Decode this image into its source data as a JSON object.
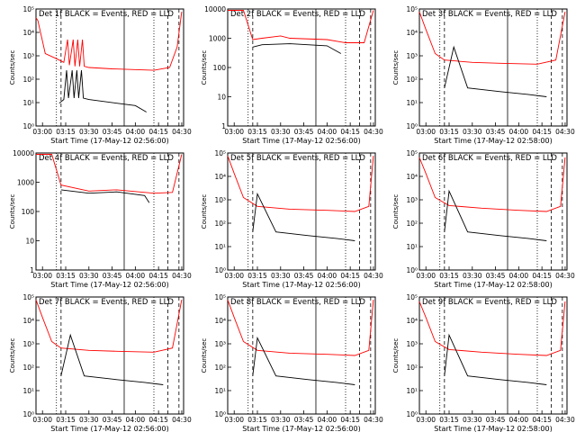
{
  "chart_data": [
    {
      "type": "line",
      "title": "Det 1f BLACK = Events, RED = LLD",
      "xlabel": "Start Time (17-May-12 02:56:00)",
      "ylabel": "Counts/sec",
      "yscale": "log",
      "ylim": [
        1,
        10000
      ],
      "yticks": [
        "10⁰",
        "10¹",
        "10²",
        "10³",
        "10⁴",
        "10⁵"
      ],
      "xticks": [
        "03:00",
        "03:15",
        "03:30",
        "03:45",
        "04:00",
        "04:15",
        "04:30"
      ],
      "series": [
        {
          "color": "#ff0000",
          "values": [
            [
              2.93,
              5000
            ],
            [
              2.95,
              4000
            ],
            [
              3.03,
              300
            ],
            [
              3.15,
              200
            ],
            [
              3.23,
              150
            ],
            [
              3.27,
              900
            ],
            [
              3.29,
              120
            ],
            [
              3.33,
              900
            ],
            [
              3.35,
              110
            ],
            [
              3.38,
              900
            ],
            [
              3.4,
              110
            ],
            [
              3.43,
              900
            ],
            [
              3.45,
              110
            ],
            [
              3.5,
              100
            ],
            [
              3.75,
              90
            ],
            [
              4.2,
              80
            ],
            [
              4.37,
              100
            ],
            [
              4.45,
              500
            ],
            [
              4.5,
              8000
            ]
          ]
        },
        {
          "color": "#000000",
          "values": [
            [
              3.18,
              6
            ],
            [
              3.23,
              8
            ],
            [
              3.26,
              80
            ],
            [
              3.28,
              9
            ],
            [
              3.32,
              80
            ],
            [
              3.34,
              9
            ],
            [
              3.37,
              80
            ],
            [
              3.39,
              9
            ],
            [
              3.42,
              80
            ],
            [
              3.44,
              9
            ],
            [
              3.5,
              8
            ],
            [
              3.8,
              6
            ],
            [
              4.0,
              5
            ],
            [
              4.12,
              3
            ]
          ]
        }
      ]
    },
    {
      "type": "line",
      "title": "Det 2f BLACK = Events, RED = LLD",
      "xlabel": "Start Time (17-May-12 02:56:00)",
      "ylabel": "Counts/sec",
      "yscale": "linear-log",
      "ylim": [
        1,
        10000
      ],
      "yticks": [
        "1",
        "10",
        "100",
        "1000",
        "10000"
      ],
      "xticks": [
        "03:00",
        "03:15",
        "03:30",
        "03:45",
        "04:00",
        "04:15",
        "04:30"
      ],
      "series": [
        {
          "color": "#ff0000",
          "values": [
            [
              2.93,
              9000
            ],
            [
              3.1,
              9000
            ],
            [
              3.2,
              900
            ],
            [
              3.3,
              1000
            ],
            [
              3.5,
              1200
            ],
            [
              3.6,
              1000
            ],
            [
              4.0,
              900
            ],
            [
              4.2,
              700
            ],
            [
              4.4,
              700
            ],
            [
              4.5,
              9000
            ]
          ]
        },
        {
          "color": "#000000",
          "values": [
            [
              3.2,
              500
            ],
            [
              3.3,
              600
            ],
            [
              3.6,
              650
            ],
            [
              4.0,
              550
            ],
            [
              4.15,
              300
            ]
          ]
        }
      ]
    },
    {
      "type": "line",
      "title": "Det 3f BLACK = Events, RED = LLD",
      "xlabel": "Start Time (17-May-12 02:58:00)",
      "ylabel": "Counts/sec",
      "yscale": "log",
      "ylim": [
        1,
        10000
      ],
      "yticks": [
        "10⁰",
        "10¹",
        "10²",
        "10³",
        "10⁴",
        "10⁵"
      ],
      "xticks": [
        "03:00",
        "03:15",
        "03:30",
        "03:45",
        "04:00",
        "04:15",
        "04:30"
      ],
      "series": [
        {
          "color": "#ff0000",
          "values": [
            [
              2.93,
              8000
            ],
            [
              3.0,
              2000
            ],
            [
              3.1,
              300
            ],
            [
              3.2,
              180
            ],
            [
              3.5,
              150
            ],
            [
              3.8,
              140
            ],
            [
              4.2,
              130
            ],
            [
              4.4,
              180
            ],
            [
              4.5,
              8000
            ]
          ]
        },
        {
          "color": "#000000",
          "values": [
            [
              3.2,
              20
            ],
            [
              3.3,
              500
            ],
            [
              3.45,
              20
            ],
            [
              3.8,
              15
            ],
            [
              4.1,
              12
            ],
            [
              4.3,
              10
            ]
          ]
        }
      ]
    },
    {
      "type": "line",
      "title": "Det 4f BLACK = Events, RED = LLD",
      "xlabel": "Start Time (17-May-12 02:56:00)",
      "ylabel": "Counts/sec",
      "yscale": "linear-log",
      "ylim": [
        1,
        10000
      ],
      "yticks": [
        "1",
        "10",
        "100",
        "1000",
        "10000"
      ],
      "xticks": [
        "03:00",
        "03:15",
        "03:30",
        "03:45",
        "04:00",
        "04:15",
        "04:30"
      ],
      "series": [
        {
          "color": "#ff0000",
          "values": [
            [
              2.93,
              9000
            ],
            [
              3.1,
              9000
            ],
            [
              3.2,
              800
            ],
            [
              3.5,
              500
            ],
            [
              3.8,
              550
            ],
            [
              4.2,
              420
            ],
            [
              4.4,
              450
            ],
            [
              4.5,
              9000
            ]
          ]
        },
        {
          "color": "#000000",
          "values": [
            [
              3.2,
              550
            ],
            [
              3.5,
              420
            ],
            [
              3.8,
              470
            ],
            [
              4.1,
              350
            ],
            [
              4.15,
              200
            ]
          ]
        }
      ]
    },
    {
      "type": "line",
      "title": "Det 5f BLACK = Events, RED = LLD",
      "xlabel": "Start Time (17-May-12 02:56:00)",
      "ylabel": "Counts/sec",
      "yscale": "log",
      "ylim": [
        1,
        10000
      ],
      "yticks": [
        "10⁰",
        "10¹",
        "10²",
        "10³",
        "10⁴",
        "10⁵"
      ],
      "xticks": [
        "03:00",
        "03:15",
        "03:30",
        "03:45",
        "04:00",
        "04:15",
        "04:30"
      ],
      "series": [
        {
          "color": "#ff0000",
          "values": [
            [
              2.93,
              8000
            ],
            [
              3.0,
              2000
            ],
            [
              3.1,
              300
            ],
            [
              3.25,
              150
            ],
            [
              3.6,
              120
            ],
            [
              4.0,
              110
            ],
            [
              4.3,
              100
            ],
            [
              4.45,
              150
            ],
            [
              4.5,
              8000
            ]
          ]
        },
        {
          "color": "#000000",
          "values": [
            [
              3.2,
              20
            ],
            [
              3.25,
              400
            ],
            [
              3.45,
              20
            ],
            [
              3.8,
              15
            ],
            [
              4.1,
              12
            ],
            [
              4.3,
              10
            ]
          ]
        }
      ]
    },
    {
      "type": "line",
      "title": "Det 6f BLACK = Events, RED = LLD",
      "xlabel": "Start Time (17-May-12 02:58:00)",
      "ylabel": "Counts/sec",
      "yscale": "log",
      "ylim": [
        1,
        10000
      ],
      "yticks": [
        "10⁰",
        "10¹",
        "10²",
        "10³",
        "10⁴",
        "10⁵"
      ],
      "xticks": [
        "03:00",
        "03:15",
        "03:30",
        "03:45",
        "04:00",
        "04:15",
        "04:30"
      ],
      "series": [
        {
          "color": "#ff0000",
          "values": [
            [
              2.93,
              7000
            ],
            [
              3.0,
              2000
            ],
            [
              3.1,
              300
            ],
            [
              3.25,
              160
            ],
            [
              3.6,
              130
            ],
            [
              4.0,
              110
            ],
            [
              4.3,
              100
            ],
            [
              4.45,
              150
            ],
            [
              4.5,
              7000
            ]
          ]
        },
        {
          "color": "#000000",
          "values": [
            [
              3.2,
              20
            ],
            [
              3.25,
              500
            ],
            [
              3.45,
              20
            ],
            [
              3.8,
              15
            ],
            [
              4.1,
              12
            ],
            [
              4.3,
              10
            ]
          ]
        }
      ]
    },
    {
      "type": "line",
      "title": "Det 7f BLACK = Events, RED = LLD",
      "xlabel": "Start Time (17-May-12 02:56:00)",
      "ylabel": "Counts/sec",
      "yscale": "log",
      "ylim": [
        1,
        10000
      ],
      "yticks": [
        "10⁰",
        "10¹",
        "10²",
        "10³",
        "10⁴",
        "10⁵"
      ],
      "xticks": [
        "03:00",
        "03:15",
        "03:30",
        "03:45",
        "04:00",
        "04:15",
        "04:30"
      ],
      "series": [
        {
          "color": "#ff0000",
          "values": [
            [
              2.93,
              8000
            ],
            [
              3.0,
              2000
            ],
            [
              3.1,
              300
            ],
            [
              3.2,
              180
            ],
            [
              3.5,
              150
            ],
            [
              3.8,
              140
            ],
            [
              4.2,
              130
            ],
            [
              4.4,
              180
            ],
            [
              4.5,
              8000
            ]
          ]
        },
        {
          "color": "#000000",
          "values": [
            [
              3.2,
              20
            ],
            [
              3.3,
              500
            ],
            [
              3.45,
              20
            ],
            [
              3.8,
              15
            ],
            [
              4.1,
              12
            ],
            [
              4.3,
              10
            ]
          ]
        }
      ]
    },
    {
      "type": "line",
      "title": "Det 8f BLACK = Events, RED = LLD",
      "xlabel": "Start Time (17-May-12 02:56:00)",
      "ylabel": "Counts/sec",
      "yscale": "log",
      "ylim": [
        1,
        10000
      ],
      "yticks": [
        "10⁰",
        "10¹",
        "10²",
        "10³",
        "10⁴",
        "10⁵"
      ],
      "xticks": [
        "03:00",
        "03:15",
        "03:30",
        "03:45",
        "04:00",
        "04:15",
        "04:30"
      ],
      "series": [
        {
          "color": "#ff0000",
          "values": [
            [
              2.93,
              8000
            ],
            [
              3.0,
              2000
            ],
            [
              3.1,
              300
            ],
            [
              3.25,
              150
            ],
            [
              3.6,
              120
            ],
            [
              4.0,
              110
            ],
            [
              4.3,
              100
            ],
            [
              4.45,
              150
            ],
            [
              4.5,
              8000
            ]
          ]
        },
        {
          "color": "#000000",
          "values": [
            [
              3.2,
              20
            ],
            [
              3.25,
              400
            ],
            [
              3.45,
              20
            ],
            [
              3.8,
              15
            ],
            [
              4.1,
              12
            ],
            [
              4.3,
              10
            ]
          ]
        }
      ]
    },
    {
      "type": "line",
      "title": "Det 9f BLACK = Events, RED = LLD",
      "xlabel": "Start Time (17-May-12 02:58:00)",
      "ylabel": "Counts/sec",
      "yscale": "log",
      "ylim": [
        1,
        10000
      ],
      "yticks": [
        "10⁰",
        "10¹",
        "10²",
        "10³",
        "10⁴",
        "10⁵"
      ],
      "xticks": [
        "03:00",
        "03:15",
        "03:30",
        "03:45",
        "04:00",
        "04:15",
        "04:30"
      ],
      "series": [
        {
          "color": "#ff0000",
          "values": [
            [
              2.93,
              7000
            ],
            [
              3.0,
              2000
            ],
            [
              3.1,
              300
            ],
            [
              3.25,
              160
            ],
            [
              3.6,
              130
            ],
            [
              4.0,
              110
            ],
            [
              4.3,
              100
            ],
            [
              4.45,
              150
            ],
            [
              4.5,
              7000
            ]
          ]
        },
        {
          "color": "#000000",
          "values": [
            [
              3.2,
              20
            ],
            [
              3.25,
              500
            ],
            [
              3.45,
              20
            ],
            [
              3.8,
              15
            ],
            [
              4.1,
              12
            ],
            [
              4.3,
              10
            ]
          ]
        }
      ]
    }
  ]
}
